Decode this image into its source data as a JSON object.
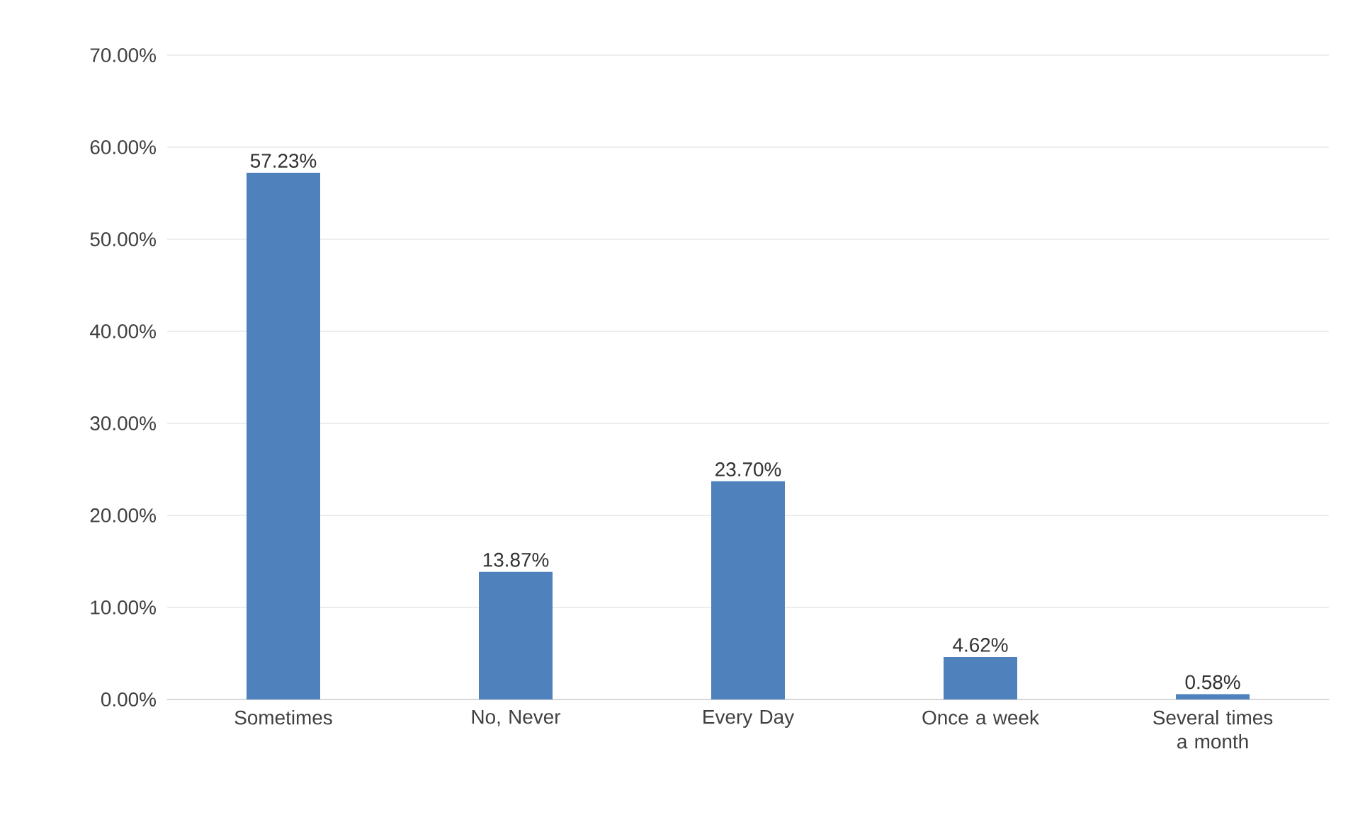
{
  "chart_data": {
    "type": "bar",
    "categories": [
      "Sometimes",
      "No, Never",
      "Every Day",
      "Once a week",
      "Several times a month"
    ],
    "values": [
      57.23,
      13.87,
      23.7,
      4.62,
      0.58
    ],
    "value_labels": [
      "57.23%",
      "13.87%",
      "23.70%",
      "4.62%",
      "0.58%"
    ],
    "color": "#4f81bd",
    "ylim": [
      0,
      70
    ],
    "yticks": [
      {
        "value": 0,
        "label": "0.00%"
      },
      {
        "value": 10,
        "label": "10.00%"
      },
      {
        "value": 20,
        "label": "20.00%"
      },
      {
        "value": 30,
        "label": "30.00%"
      },
      {
        "value": 40,
        "label": "40.00%"
      },
      {
        "value": 50,
        "label": "50.00%"
      },
      {
        "value": 60,
        "label": "60.00%"
      },
      {
        "value": 70,
        "label": "70.00%"
      }
    ],
    "grid": "y"
  }
}
